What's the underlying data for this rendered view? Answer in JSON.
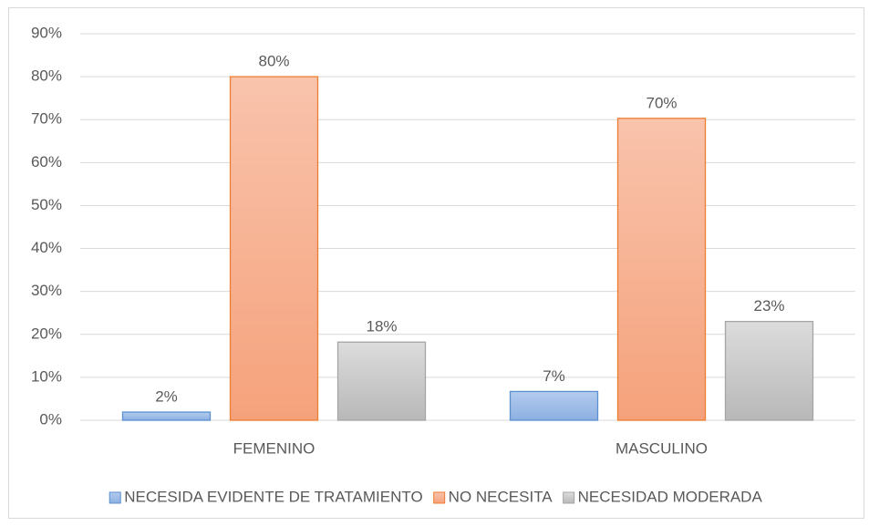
{
  "chart_data": {
    "type": "bar",
    "categories": [
      "FEMENINO",
      "MASCULINO"
    ],
    "series": [
      {
        "name": "NECESIDA EVIDENTE DE TRATAMIENTO",
        "color": "#5b8fd0",
        "values": [
          1.9,
          6.7
        ],
        "value_labels": [
          "2%",
          "7%"
        ]
      },
      {
        "name": "NO NECESITA",
        "color": "#ed7d31",
        "values": [
          80,
          70.3
        ],
        "value_labels": [
          "80%",
          "70%"
        ]
      },
      {
        "name": "NECESIDAD MODERADA",
        "color": "#a5a5a5",
        "values": [
          18.2,
          23
        ],
        "value_labels": [
          "18%",
          "23%"
        ]
      }
    ],
    "ylim": [
      0,
      90
    ],
    "yticks": [
      {
        "value": 0,
        "label": "0%"
      },
      {
        "value": 10,
        "label": "10%"
      },
      {
        "value": 20,
        "label": "20%"
      },
      {
        "value": 30,
        "label": "30%"
      },
      {
        "value": 40,
        "label": "40%"
      },
      {
        "value": 50,
        "label": "50%"
      },
      {
        "value": 60,
        "label": "60%"
      },
      {
        "value": 70,
        "label": "70%"
      },
      {
        "value": 80,
        "label": "80%"
      },
      {
        "value": 90,
        "label": "90%"
      }
    ],
    "grid": true,
    "legend": "bottom"
  }
}
